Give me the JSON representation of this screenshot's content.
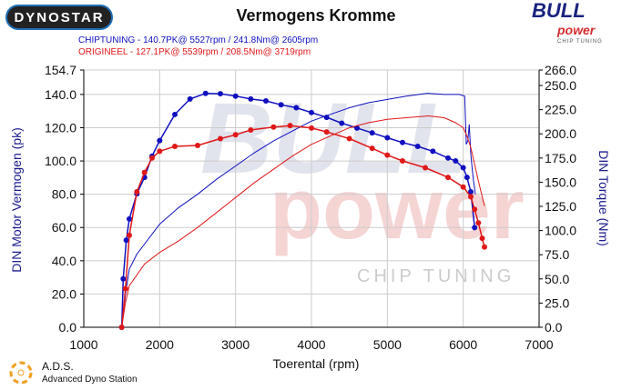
{
  "header": {
    "logo": "DYNOSTAR",
    "brand_logo": "BULL power",
    "brand_sub": "CHIP TUNING",
    "watermark": "BULL power CHIP TUNING"
  },
  "footer": {
    "ads_title": "A.D.S.",
    "ads_sub": "Advanced Dyno Station"
  },
  "colors": {
    "chiptuning": "#1010c0",
    "origineel": "#e01818"
  },
  "chart_data": {
    "type": "line",
    "title": "Vermogens Kromme",
    "xlabel": "Toerental (rpm)",
    "ylabel": "DIN Motor Vermogen (pk)",
    "y2label": "DIN Torque (Nm)",
    "xlim": [
      1000,
      7000
    ],
    "ylim": [
      0,
      154.7
    ],
    "y2lim": [
      0,
      266
    ],
    "xticks": [
      "1000",
      "2000",
      "3000",
      "4000",
      "5000",
      "6000",
      "7000"
    ],
    "yticks": [
      "0.0",
      "20.0",
      "40.0",
      "60.0",
      "80.0",
      "100.0",
      "120.0",
      "140.0",
      "154.7"
    ],
    "y2ticks": [
      "0.0",
      "25.0",
      "50.0",
      "75.0",
      "100.0",
      "125.0",
      "150.0",
      "175.0",
      "200.0",
      "225.0",
      "250.0",
      "266.0"
    ],
    "grid": true,
    "legend": [
      {
        "label": "CHIPTUNING  - 140.7PK@ 5527rpm / 241.8Nm@ 2605rpm",
        "color": "#1010c0"
      },
      {
        "label": "ORIGINEEL  - 127.1PK@ 5539rpm / 208.5Nm@ 3719rpm",
        "color": "#e01818"
      }
    ],
    "series": [
      {
        "name": "CHIPTUNING power (pk)",
        "axis": "left",
        "style": "line",
        "color": "#1010c0",
        "x": [
          1500,
          1550,
          1600,
          1700,
          1800,
          2000,
          2250,
          2500,
          2750,
          3000,
          3250,
          3500,
          3750,
          4000,
          4250,
          4500,
          4750,
          5000,
          5250,
          5527,
          5750,
          5950,
          6020,
          6040,
          6060,
          6080,
          6100,
          6130,
          6160
        ],
        "y": [
          0,
          20,
          35,
          44,
          50,
          62,
          72,
          80,
          89,
          97,
          105,
          112,
          118,
          124,
          128,
          132,
          135,
          137,
          139,
          140.7,
          140,
          140,
          139,
          110,
          112,
          122,
          104,
          90,
          80
        ]
      },
      {
        "name": "CHIPTUNING torque (Nm)",
        "axis": "right",
        "style": "dots",
        "color": "#1010c0",
        "x": [
          1500,
          1520,
          1560,
          1600,
          1700,
          1800,
          1900,
          2000,
          2200,
          2400,
          2605,
          2800,
          3000,
          3200,
          3400,
          3600,
          3800,
          4000,
          4200,
          4400,
          4600,
          4800,
          5000,
          5200,
          5400,
          5600,
          5800,
          5900,
          6000,
          6050,
          6100,
          6150
        ],
        "y": [
          0,
          50,
          90,
          112,
          138,
          155,
          177,
          193,
          220,
          236,
          241.8,
          241.5,
          239,
          236,
          234,
          230,
          227,
          222,
          217,
          211,
          206,
          201,
          196,
          191,
          187,
          182,
          175,
          172,
          165,
          155,
          140,
          103
        ]
      },
      {
        "name": "ORIGINEEL power (pk)",
        "axis": "left",
        "style": "line",
        "color": "#e01818",
        "x": [
          1500,
          1550,
          1600,
          1800,
          2000,
          2250,
          2500,
          2750,
          3000,
          3250,
          3500,
          3750,
          4000,
          4250,
          4500,
          4750,
          5000,
          5250,
          5539,
          5750,
          5900,
          6000,
          6050,
          6100,
          6150,
          6200,
          6280
        ],
        "y": [
          0,
          15,
          25,
          38,
          45,
          52,
          60,
          69,
          78,
          87,
          95,
          103,
          110,
          115,
          120,
          123,
          125,
          126,
          127.1,
          126,
          123,
          120,
          115,
          108,
          98,
          88,
          73
        ]
      },
      {
        "name": "ORIGINEEL torque (Nm)",
        "axis": "right",
        "style": "dots",
        "color": "#e01818",
        "x": [
          1500,
          1550,
          1600,
          1700,
          1800,
          1900,
          2000,
          2200,
          2500,
          2800,
          3000,
          3200,
          3500,
          3719,
          4000,
          4200,
          4500,
          4800,
          5000,
          5200,
          5500,
          5800,
          6000,
          6100,
          6150,
          6200,
          6250,
          6280
        ],
        "y": [
          0,
          40,
          95,
          140,
          160,
          175,
          182,
          187,
          188,
          195,
          199,
          204,
          207,
          208.5,
          206,
          202,
          195,
          185,
          178,
          172,
          165,
          155,
          145,
          135,
          122,
          108,
          92,
          83
        ]
      }
    ]
  }
}
